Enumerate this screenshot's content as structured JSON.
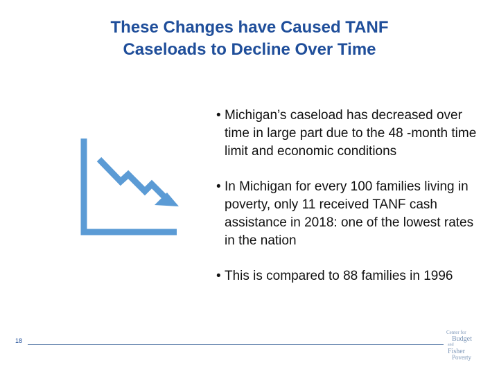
{
  "title": {
    "line1": "These Changes have Caused TANF",
    "line2": "Caseloads to Decline Over Time"
  },
  "bullets": [
    {
      "marker": "•",
      "text": "Michigan’s caseload has decreased over time in large part due to the 48 -month time limit and economic conditions"
    },
    {
      "marker": "•",
      "text": "In Michigan for every 100 families living in poverty, only 11 received TANF cash assistance in 2018: one of the lowest rates in the nation"
    },
    {
      "marker": "•",
      "text": "This is compared to 88 families in 1996"
    }
  ],
  "icon": {
    "name": "declining-chart-icon",
    "color": "#5b9bd5"
  },
  "footer": {
    "page_number": "18",
    "logo": {
      "line1": "Center for",
      "line2": "Budget",
      "line3_small": "and",
      "line3": "Fisher",
      "line4": "Poverty"
    }
  },
  "colors": {
    "title": "#1f4e9a",
    "icon": "#5b9bd5",
    "rule": "#6d8bb3",
    "logo": "#7d97b8"
  }
}
